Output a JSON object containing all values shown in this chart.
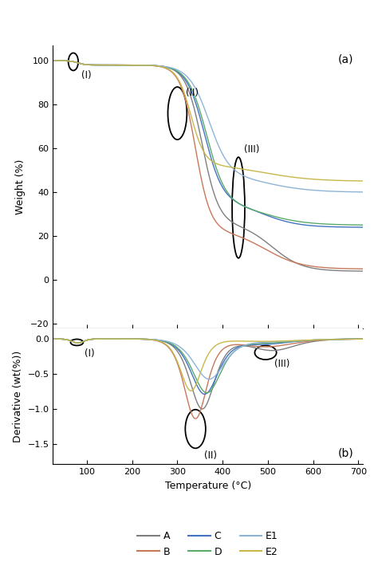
{
  "title_a": "(a)",
  "title_b": "(b)",
  "xlabel": "Temperature (°C)",
  "ylabel_a": "Weight (%)",
  "ylabel_b": "Derivative (wt(%))",
  "xlim": [
    25,
    710
  ],
  "ylim_a": [
    -22,
    107
  ],
  "ylim_b": [
    -1.78,
    0.15
  ],
  "xticks": [
    100,
    200,
    300,
    400,
    500,
    600,
    700
  ],
  "yticks_a": [
    -20,
    0,
    20,
    40,
    60,
    80,
    100
  ],
  "yticks_b": [
    -1.5,
    -1.0,
    -0.5,
    0.0
  ],
  "colors": {
    "A": "#7f7f7f",
    "B": "#c8785a",
    "C": "#4472c4",
    "D": "#5aaa6a",
    "E1": "#8eb4d8",
    "E2": "#c8b84a"
  },
  "legend_labels": [
    "A",
    "B",
    "C",
    "D",
    "E1",
    "E2"
  ]
}
